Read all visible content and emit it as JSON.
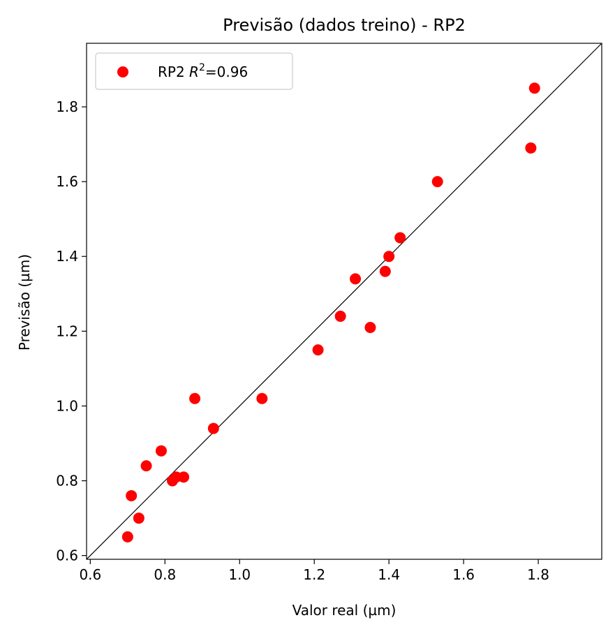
{
  "chart_data": {
    "type": "scatter",
    "title": "Previsão (dados treino) - RP2",
    "xlabel": "Valor real (µm)",
    "ylabel": "Previsão (µm)",
    "xlim": [
      0.59,
      1.97
    ],
    "ylim": [
      0.59,
      1.97
    ],
    "xticks": [
      0.6,
      0.8,
      1.0,
      1.2,
      1.4,
      1.6,
      1.8
    ],
    "yticks": [
      0.6,
      0.8,
      1.0,
      1.2,
      1.4,
      1.6,
      1.8
    ],
    "xtick_labels": [
      "0.6",
      "0.8",
      "1.0",
      "1.2",
      "1.4",
      "1.6",
      "1.8"
    ],
    "ytick_labels": [
      "0.6",
      "0.8",
      "1.0",
      "1.2",
      "1.4",
      "1.6",
      "1.8"
    ],
    "grid": false,
    "identity_line": true,
    "identity_line_color": "#000000",
    "legend": {
      "placement": "top-left",
      "label_prefix": "RP2 ",
      "label_r": "R",
      "label_sup": "2",
      "label_suffix": "=0.96"
    },
    "series": [
      {
        "name": "RP2 R²=0.96",
        "color": "#ff0000",
        "x": [
          0.7,
          0.71,
          0.73,
          0.75,
          0.79,
          0.82,
          0.83,
          0.85,
          0.88,
          0.93,
          1.06,
          1.21,
          1.27,
          1.31,
          1.35,
          1.39,
          1.4,
          1.43,
          1.53,
          1.78,
          1.79
        ],
        "y": [
          0.65,
          0.76,
          0.7,
          0.84,
          0.88,
          0.8,
          0.81,
          0.81,
          1.02,
          0.94,
          1.02,
          1.15,
          1.24,
          1.34,
          1.21,
          1.36,
          1.4,
          1.45,
          1.6,
          1.69,
          1.85
        ]
      }
    ]
  }
}
